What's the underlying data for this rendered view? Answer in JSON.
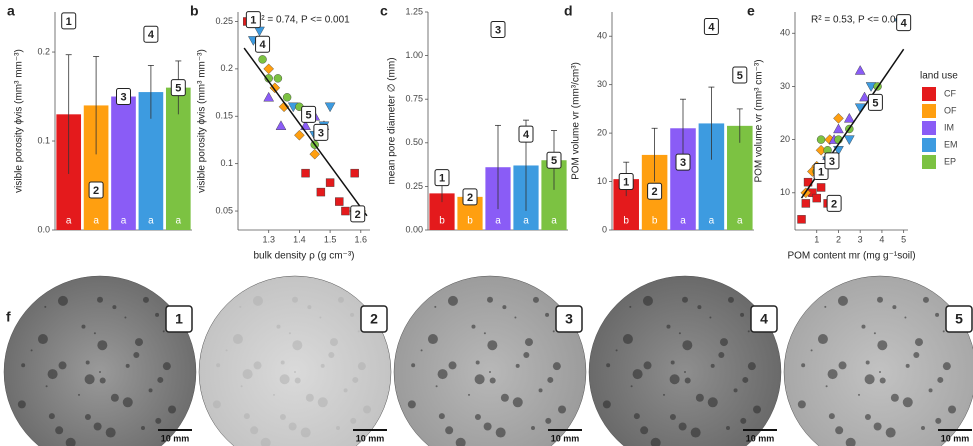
{
  "chart_data": [
    {
      "type": "bar",
      "panel_label": "a",
      "ylabel": "visible porosity ϕvis (mm³ mm⁻³)",
      "values": [
        0.13,
        0.14,
        0.15,
        0.155,
        0.16
      ],
      "errors": [
        0.067,
        0.055,
        0.008,
        0.03,
        0.03
      ],
      "colors": [
        "#e41a1c",
        "#ff9f10",
        "#8a5cf6",
        "#3d9be0",
        "#7cc242"
      ],
      "letters": [
        "a",
        "a",
        "a",
        "a",
        "a"
      ],
      "ylim": [
        0,
        0.245
      ],
      "yticks": [
        {
          "value": 0,
          "label": "0.0"
        },
        0.1,
        0.2
      ],
      "annotations": [
        {
          "label": "1",
          "x": 0,
          "y": 0.235
        },
        {
          "label": "2",
          "x": 1,
          "y": 0.045
        },
        {
          "label": "3",
          "x": 2,
          "y": 0.15
        },
        {
          "label": "4",
          "x": 3,
          "y": 0.22
        },
        {
          "label": "5",
          "x": 4,
          "y": 0.16
        }
      ]
    },
    {
      "type": "scatter",
      "panel_label": "b",
      "xlabel": "bulk density ρ (g cm⁻³)",
      "ylabel": "visible porosity ϕvis (mm³ mm⁻³)",
      "annotation": "R² = 0.74, P <= 0.001",
      "xlim": [
        1.2,
        1.63
      ],
      "xticks": [
        1.3,
        1.4,
        1.5,
        1.6
      ],
      "ylim": [
        0.03,
        0.26
      ],
      "yticks": [
        0.05,
        0.1,
        0.15,
        0.2,
        0.25
      ],
      "series": [
        {
          "color": "#e41a1c",
          "shape": "square",
          "x": [
            1.23,
            1.5,
            1.53,
            1.47,
            1.55,
            1.42,
            1.58
          ],
          "values": [
            0.25,
            0.08,
            0.06,
            0.07,
            0.05,
            0.09,
            0.09
          ]
        },
        {
          "color": "#ff9f10",
          "shape": "diamond",
          "x": [
            1.3,
            1.35,
            1.45,
            1.58,
            1.6,
            1.4,
            1.32
          ],
          "values": [
            0.2,
            0.16,
            0.11,
            0.05,
            0.05,
            0.13,
            0.18
          ]
        },
        {
          "color": "#8a5cf6",
          "shape": "triangle",
          "x": [
            1.34,
            1.42,
            1.45,
            1.3,
            1.48
          ],
          "values": [
            0.14,
            0.14,
            0.15,
            0.17,
            0.14
          ]
        },
        {
          "color": "#3d9be0",
          "shape": "triangle-down",
          "x": [
            1.25,
            1.38,
            1.45,
            1.5,
            1.48,
            1.27
          ],
          "values": [
            0.23,
            0.16,
            0.13,
            0.16,
            0.14,
            0.24
          ]
        },
        {
          "color": "#7cc242",
          "shape": "circle",
          "x": [
            1.28,
            1.3,
            1.36,
            1.4,
            1.45,
            1.33
          ],
          "values": [
            0.21,
            0.19,
            0.17,
            0.16,
            0.12,
            0.19
          ]
        }
      ],
      "fit": {
        "x": [
          1.22,
          1.62
        ],
        "values": [
          0.222,
          0.045
        ]
      },
      "annotations": [
        {
          "label": "1",
          "x": 1.25,
          "y": 0.252
        },
        {
          "label": "2",
          "x": 1.59,
          "y": 0.047
        },
        {
          "label": "3",
          "x": 1.47,
          "y": 0.133
        },
        {
          "label": "4",
          "x": 1.28,
          "y": 0.226
        },
        {
          "label": "5",
          "x": 1.43,
          "y": 0.152
        }
      ]
    },
    {
      "type": "bar",
      "panel_label": "c",
      "ylabel": "mean pore diameter ∅ (mm)",
      "values": [
        0.21,
        0.19,
        0.36,
        0.37,
        0.4
      ],
      "errors": [
        0.05,
        0.04,
        0.24,
        0.26,
        0.17
      ],
      "colors": [
        "#e41a1c",
        "#ff9f10",
        "#8a5cf6",
        "#3d9be0",
        "#7cc242"
      ],
      "letters": [
        "b",
        "b",
        "a",
        "a",
        "a"
      ],
      "ylim": [
        0,
        1.25
      ],
      "yticks": [
        {
          "value": 0,
          "label": "0.00"
        },
        {
          "value": 0.25,
          "label": "0.25"
        },
        {
          "value": 0.5,
          "label": "0.50"
        },
        {
          "value": 0.75,
          "label": "0.75"
        },
        {
          "value": 1,
          "label": "1.00"
        },
        {
          "value": 1.25,
          "label": "1.25"
        }
      ],
      "annotations": [
        {
          "label": "1",
          "x": 0,
          "y": 0.3
        },
        {
          "label": "2",
          "x": 1,
          "y": 0.19
        },
        {
          "label": "3",
          "x": 2,
          "y": 1.15
        },
        {
          "label": "4",
          "x": 3,
          "y": 0.55
        },
        {
          "label": "5",
          "x": 4,
          "y": 0.4
        }
      ]
    },
    {
      "type": "bar",
      "panel_label": "d",
      "ylabel": "POM volume vr (mm³/cm³)",
      "values": [
        10.5,
        15.5,
        21,
        22,
        21.5
      ],
      "errors": [
        3.5,
        5.5,
        6,
        7.5,
        3.5
      ],
      "colors": [
        "#e41a1c",
        "#ff9f10",
        "#8a5cf6",
        "#3d9be0",
        "#7cc242"
      ],
      "letters": [
        "b",
        "b",
        "a",
        "a",
        "a"
      ],
      "ylim": [
        0,
        45
      ],
      "yticks": [
        0,
        10,
        20,
        30,
        40
      ],
      "annotations": [
        {
          "label": "1",
          "x": 0,
          "y": 10
        },
        {
          "label": "2",
          "x": 1,
          "y": 8
        },
        {
          "label": "3",
          "x": 2,
          "y": 14
        },
        {
          "label": "4",
          "x": 3,
          "y": 42
        },
        {
          "label": "5",
          "x": 4,
          "y": 32
        }
      ]
    },
    {
      "type": "scatter",
      "panel_label": "e",
      "xlabel": "POM content mr (mg g⁻¹soil)",
      "ylabel": "POM volume vr (mm³ cm⁻³)",
      "annotation": "R² = 0.53, P <= 0.001",
      "xlim": [
        0,
        5.2
      ],
      "xticks": [
        1,
        2,
        3,
        4,
        5
      ],
      "ylim": [
        3,
        44
      ],
      "yticks": [
        10,
        20,
        30,
        40
      ],
      "series": [
        {
          "name": "CF",
          "color": "#e41a1c",
          "shape": "square",
          "x": [
            0.3,
            0.5,
            0.8,
            1.0,
            1.2,
            0.6,
            1.5
          ],
          "values": [
            5,
            8,
            10,
            9,
            11,
            12,
            8
          ]
        },
        {
          "name": "OF",
          "color": "#ff9f10",
          "shape": "diamond",
          "x": [
            0.5,
            0.8,
            1.2,
            1.6,
            2.0,
            1.0
          ],
          "values": [
            10,
            14,
            18,
            20,
            24,
            15
          ]
        },
        {
          "name": "IM",
          "color": "#8a5cf6",
          "shape": "triangle",
          "x": [
            1.5,
            2.0,
            2.5,
            3.0,
            3.2,
            1.8
          ],
          "values": [
            17,
            22,
            24,
            33,
            28,
            20
          ]
        },
        {
          "name": "EM",
          "color": "#3d9be0",
          "shape": "triangle-down",
          "x": [
            2.0,
            2.5,
            3.0,
            3.5,
            4.8,
            1.5
          ],
          "values": [
            18,
            20,
            26,
            30,
            42,
            16
          ]
        },
        {
          "name": "EP",
          "color": "#7cc242",
          "shape": "circle",
          "x": [
            1.0,
            1.5,
            2.0,
            1.2,
            3.8,
            2.5
          ],
          "values": [
            14,
            18,
            20,
            20,
            30,
            22
          ]
        }
      ],
      "fit": {
        "x": [
          0.3,
          5
        ],
        "values": [
          9,
          37
        ]
      },
      "legend_title": "land use",
      "annotations": [
        {
          "label": "1",
          "x": 1.2,
          "y": 14
        },
        {
          "label": "2",
          "x": 1.8,
          "y": 8
        },
        {
          "label": "3",
          "x": 1.7,
          "y": 16
        },
        {
          "label": "4",
          "x": 5,
          "y": 42
        },
        {
          "label": "5",
          "x": 3.7,
          "y": 27
        }
      ]
    }
  ],
  "micrographs": {
    "panel_label": "f",
    "scale_bar": "10 mm",
    "labels": [
      "1",
      "2",
      "3",
      "4",
      "5"
    ]
  }
}
